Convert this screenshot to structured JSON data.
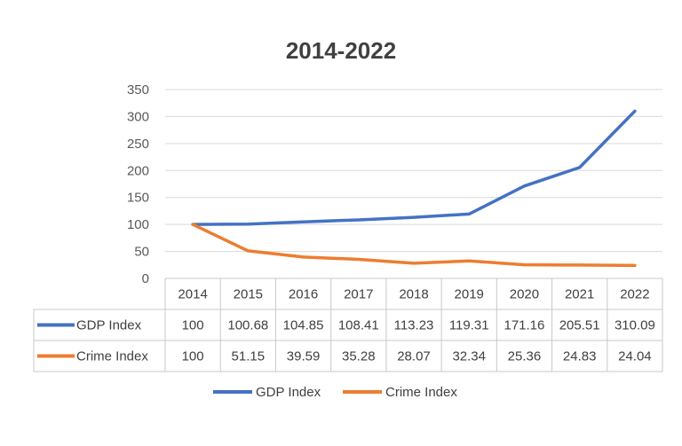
{
  "chart_data": {
    "type": "line",
    "title": "2014-2022",
    "categories": [
      "2014",
      "2015",
      "2016",
      "2017",
      "2018",
      "2019",
      "2020",
      "2021",
      "2022"
    ],
    "series": [
      {
        "name": "GDP Index",
        "color": "#4472c4",
        "values": [
          100,
          100.68,
          104.85,
          108.41,
          113.23,
          119.31,
          171.16,
          205.51,
          310.09
        ],
        "labels": [
          "100",
          "100.68",
          "104.85",
          "108.41",
          "113.23",
          "119.31",
          "171.16",
          "205.51",
          "310.09"
        ]
      },
      {
        "name": "Crime Index",
        "color": "#ed7d31",
        "values": [
          100,
          51.15,
          39.59,
          35.28,
          28.07,
          32.34,
          25.36,
          24.83,
          24.04
        ],
        "labels": [
          "100",
          "51.15",
          "39.59",
          "35.28",
          "28.07",
          "32.34",
          "25.36",
          "24.83",
          "24.04"
        ]
      }
    ],
    "ylim": [
      0,
      350
    ],
    "yticks": [
      "0",
      "50",
      "100",
      "150",
      "200",
      "250",
      "300",
      "350"
    ],
    "grid": true,
    "data_table": true,
    "legend": "bottom"
  }
}
